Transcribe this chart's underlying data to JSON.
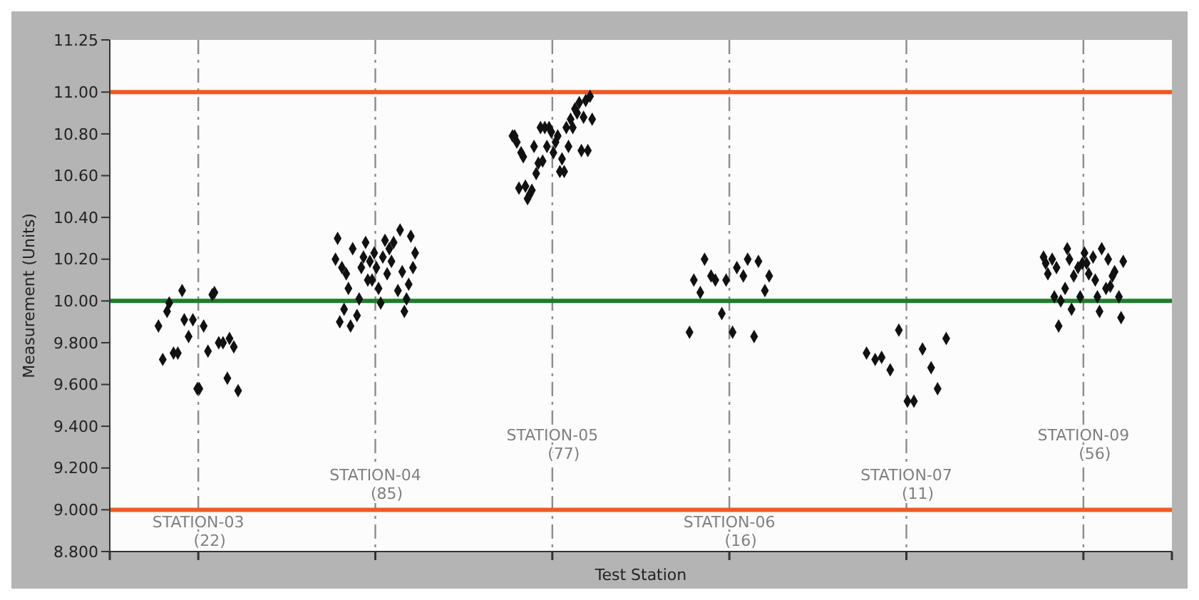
{
  "chart_data": {
    "type": "scatter",
    "xlabel": "Test Station",
    "ylabel": "Measurement (Units)",
    "marker": "diamond",
    "grid": "x",
    "line_style": "dashed",
    "categories": [
      null,
      null,
      null,
      null,
      null,
      null
    ],
    "ylim": [
      8.8,
      11.25
    ],
    "yticks": [
      {
        "value": 8.8,
        "label": "8.800"
      },
      {
        "value": 9.0,
        "label": "9.000"
      },
      {
        "value": 9.2,
        "label": "9.200"
      },
      {
        "value": 9.4,
        "label": "9.400"
      },
      {
        "value": 9.6,
        "label": "9.600"
      },
      {
        "value": 9.8,
        "label": "9.800"
      },
      {
        "value": 10.0,
        "label": "10.00"
      },
      {
        "value": 10.2,
        "label": "10.20"
      },
      {
        "value": 10.4,
        "label": "10.40"
      },
      {
        "value": 10.6,
        "label": "10.60"
      },
      {
        "value": 10.8,
        "label": "10.80"
      },
      {
        "value": 11.0,
        "label": "11.00"
      },
      {
        "value": 11.25,
        "label": "11.25"
      }
    ],
    "series": [
      {
        "color": "#111111",
        "values": [
          9.88,
          10.2,
          10.79,
          9.85,
          9.75,
          10.21
        ]
      },
      {
        "color": "#111111",
        "values": [
          null,
          10.3,
          10.79,
          null,
          null,
          10.18
        ]
      },
      {
        "color": "#111111",
        "values": [
          9.72,
          9.9,
          10.76,
          10.1,
          null,
          10.13
        ]
      },
      {
        "color": "#111111",
        "values": [
          null,
          10.16,
          10.54,
          null,
          null,
          null
        ]
      },
      {
        "color": "#111111",
        "values": [
          9.95,
          9.96,
          10.71,
          null,
          9.72,
          10.2
        ]
      },
      {
        "color": "#111111",
        "values": [
          9.99,
          10.13,
          10.69,
          10.04,
          null,
          10.02
        ]
      },
      {
        "color": "#111111",
        "values": [
          null,
          10.06,
          10.55,
          null,
          null,
          10.16
        ]
      },
      {
        "color": "#111111",
        "values": [
          9.75,
          9.88,
          10.49,
          10.2,
          9.73,
          9.88
        ]
      },
      {
        "color": "#111111",
        "values": [
          null,
          10.25,
          10.51,
          null,
          null,
          10.0
        ]
      },
      {
        "color": "#111111",
        "values": [
          9.75,
          null,
          10.53,
          null,
          null,
          null
        ]
      },
      {
        "color": "#111111",
        "values": [
          null,
          9.93,
          10.74,
          10.12,
          null,
          10.06
        ]
      },
      {
        "color": "#111111",
        "values": [
          10.05,
          10.01,
          10.61,
          null,
          9.67,
          10.25
        ]
      },
      {
        "color": "#111111",
        "values": [
          9.91,
          10.16,
          10.66,
          10.1,
          null,
          10.2
        ]
      },
      {
        "color": "#111111",
        "values": [
          null,
          10.21,
          10.83,
          null,
          null,
          9.96
        ]
      },
      {
        "color": "#111111",
        "values": [
          9.83,
          10.28,
          10.67,
          null,
          null,
          10.12
        ]
      },
      {
        "color": "#111111",
        "values": [
          null,
          10.1,
          10.83,
          9.94,
          9.86,
          null
        ]
      },
      {
        "color": "#111111",
        "values": [
          9.91,
          10.19,
          10.74,
          null,
          null,
          10.16
        ]
      },
      {
        "color": "#111111",
        "values": [
          null,
          10.1,
          10.83,
          10.1,
          null,
          10.02
        ]
      },
      {
        "color": "#111111",
        "values": [
          9.58,
          10.23,
          10.81,
          null,
          null,
          10.18
        ]
      },
      {
        "color": "#111111",
        "values": [
          9.58,
          10.16,
          10.71,
          null,
          9.52,
          10.23
        ]
      },
      {
        "color": "#111111",
        "values": [
          null,
          10.06,
          10.76,
          9.85,
          null,
          10.18
        ]
      },
      {
        "color": "#111111",
        "values": [
          9.88,
          9.99,
          10.79,
          null,
          null,
          10.13
        ]
      },
      {
        "color": "#111111",
        "values": [
          null,
          10.21,
          10.62,
          10.16,
          9.52,
          null
        ]
      },
      {
        "color": "#111111",
        "values": [
          9.76,
          10.29,
          10.68,
          null,
          null,
          10.21
        ]
      },
      {
        "color": "#111111",
        "values": [
          null,
          10.13,
          10.62,
          null,
          null,
          10.1
        ]
      },
      {
        "color": "#111111",
        "values": [
          10.03,
          10.25,
          10.83,
          10.12,
          null,
          10.02
        ]
      },
      {
        "color": "#111111",
        "values": [
          10.04,
          10.19,
          10.74,
          null,
          9.77,
          9.95
        ]
      },
      {
        "color": "#111111",
        "values": [
          null,
          10.28,
          10.87,
          10.2,
          null,
          10.25
        ]
      },
      {
        "color": "#111111",
        "values": [
          9.8,
          null,
          10.83,
          null,
          null,
          null
        ]
      },
      {
        "color": "#111111",
        "values": [
          null,
          10.05,
          10.92,
          null,
          null,
          10.06
        ]
      },
      {
        "color": "#111111",
        "values": [
          9.8,
          10.34,
          10.9,
          9.83,
          9.68,
          10.2
        ]
      },
      {
        "color": "#111111",
        "values": [
          null,
          10.14,
          10.95,
          null,
          null,
          10.07
        ]
      },
      {
        "color": "#111111",
        "values": [
          9.63,
          9.95,
          10.72,
          10.19,
          null,
          10.12
        ]
      },
      {
        "color": "#111111",
        "values": [
          9.82,
          10.01,
          10.88,
          null,
          9.58,
          10.14
        ]
      },
      {
        "color": "#111111",
        "values": [
          null,
          10.08,
          10.96,
          null,
          null,
          null
        ]
      },
      {
        "color": "#111111",
        "values": [
          9.78,
          10.31,
          10.72,
          10.05,
          null,
          10.02
        ]
      },
      {
        "color": "#111111",
        "values": [
          null,
          10.16,
          10.98,
          null,
          null,
          9.92
        ]
      },
      {
        "color": "#111111",
        "values": [
          9.57,
          10.23,
          10.87,
          10.12,
          9.82,
          10.19
        ]
      }
    ],
    "ref_lines": [
      {
        "axis": "y",
        "value": 11.0,
        "color": "#f05a22"
      },
      {
        "axis": "y",
        "value": 9.0,
        "color": "#f05a22"
      },
      {
        "axis": "y",
        "value": 10.0,
        "color": "#1e7d2a"
      }
    ],
    "annotations": [
      "STATION-03\n(22)",
      "STATION-04\n(85)",
      "STATION-05\n(77)",
      "STATION-06\n(16)",
      "STATION-07\n(11)",
      "STATION-09\n(56)"
    ]
  }
}
